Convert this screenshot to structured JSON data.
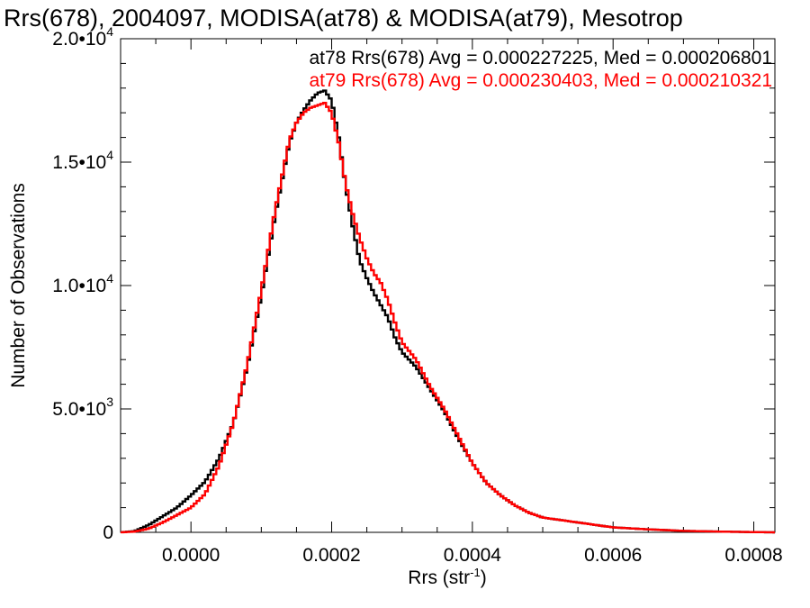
{
  "chart_data": {
    "type": "line",
    "title": "Rrs(678), 2004097, MODISA(at78) & MODISA(at79), Mesotrop",
    "xlabel_main": "Rrs (str",
    "xlabel_sup": "-1",
    "xlabel_close": ")",
    "ylabel": "Number of Observations",
    "xlim": [
      -0.0001,
      0.00083
    ],
    "ylim": [
      0,
      20000
    ],
    "x_ticks": [
      {
        "value": 0.0,
        "label": "0.0000"
      },
      {
        "value": 0.0002,
        "label": "0.0002"
      },
      {
        "value": 0.0004,
        "label": "0.0004"
      },
      {
        "value": 0.0006,
        "label": "0.0006"
      },
      {
        "value": 0.0008,
        "label": "0.0008"
      }
    ],
    "y_ticks": [
      {
        "value": 0,
        "mant": "0",
        "exp": ""
      },
      {
        "value": 5000,
        "mant": "5.0•10",
        "exp": "3"
      },
      {
        "value": 10000,
        "mant": "1.0•10",
        "exp": "4"
      },
      {
        "value": 15000,
        "mant": "1.5•10",
        "exp": "4"
      },
      {
        "value": 20000,
        "mant": "2.0•10",
        "exp": "4"
      }
    ],
    "annotations": [
      {
        "text": "at78 Rrs(678) Avg = 0.000227225, Med = 0.000206801",
        "color": "#000000"
      },
      {
        "text": "at79 Rrs(678) Avg = 0.000230403, Med = 0.000210321",
        "color": "#ff0000"
      }
    ],
    "series": [
      {
        "color": "#000000",
        "x": [
          -0.0001,
          -8e-05,
          -6e-05,
          -4e-05,
          -2e-05,
          0.0,
          2e-05,
          4e-05,
          6e-05,
          8e-05,
          0.0001,
          0.00012,
          0.00014,
          0.00015,
          0.00016,
          0.00017,
          0.00018,
          0.00019,
          0.0002,
          0.00021,
          0.00022,
          0.00023,
          0.00024,
          0.00025,
          0.00026,
          0.00027,
          0.00028,
          0.00029,
          0.0003,
          0.00032,
          0.00034,
          0.00036,
          0.00038,
          0.0004,
          0.00042,
          0.00044,
          0.00046,
          0.00048,
          0.0005,
          0.00055,
          0.0006,
          0.00065,
          0.0007,
          0.00075,
          0.0008,
          0.00083
        ],
        "y": [
          0,
          50,
          300,
          650,
          1000,
          1500,
          2050,
          3000,
          4400,
          6700,
          9600,
          12900,
          15800,
          16600,
          17100,
          17500,
          17800,
          17900,
          17500,
          16000,
          14000,
          12400,
          11000,
          10300,
          9700,
          9200,
          8700,
          7900,
          7300,
          6700,
          5800,
          4900,
          3800,
          2800,
          2000,
          1500,
          1100,
          800,
          600,
          400,
          200,
          120,
          60,
          30,
          10,
          0
        ]
      },
      {
        "color": "#ff0000",
        "x": [
          -0.0001,
          -8e-05,
          -6e-05,
          -4e-05,
          -2e-05,
          0.0,
          2e-05,
          4e-05,
          6e-05,
          8e-05,
          0.0001,
          0.00012,
          0.00014,
          0.00015,
          0.00016,
          0.00017,
          0.00018,
          0.00019,
          0.0002,
          0.00021,
          0.00022,
          0.00023,
          0.00024,
          0.00025,
          0.00026,
          0.00027,
          0.00028,
          0.00029,
          0.0003,
          0.00032,
          0.00034,
          0.00036,
          0.00038,
          0.0004,
          0.00042,
          0.00044,
          0.00046,
          0.00048,
          0.0005,
          0.00055,
          0.0006,
          0.00065,
          0.0007,
          0.00075,
          0.0008,
          0.00083
        ],
        "y": [
          0,
          30,
          150,
          400,
          700,
          1000,
          1550,
          2700,
          4400,
          6800,
          9800,
          13100,
          15900,
          16600,
          17000,
          17200,
          17300,
          17400,
          17000,
          15800,
          14100,
          12900,
          11900,
          11100,
          10500,
          10100,
          9400,
          8500,
          7700,
          7000,
          5900,
          5000,
          3900,
          2800,
          2000,
          1500,
          1100,
          800,
          600,
          400,
          200,
          120,
          60,
          30,
          10,
          0
        ]
      }
    ]
  }
}
